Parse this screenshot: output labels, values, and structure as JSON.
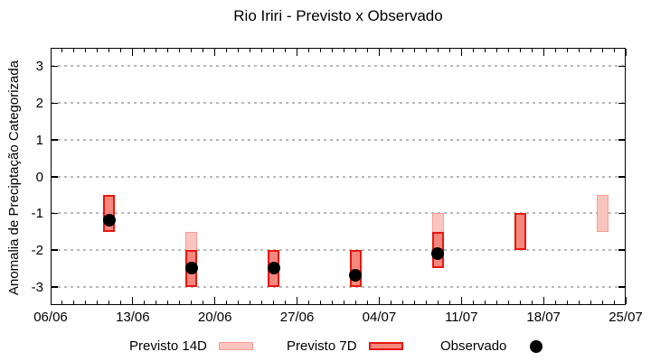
{
  "title": "Rio Iriri - Previsto x Observado",
  "y_axis": {
    "label": "Anomalia de Preciptação Categorizada",
    "ticks": [
      3,
      2,
      1,
      0,
      -1,
      -2,
      -3
    ],
    "range": [
      -3.5,
      3.5
    ]
  },
  "x_axis": {
    "tick_labels": [
      "06/06",
      "13/06",
      "20/06",
      "27/06",
      "04/07",
      "11/07",
      "18/07",
      "25/07"
    ],
    "start_date": "06/06",
    "end_date": "25/07",
    "major_tick_interval_days": 7,
    "minor_tick_interval_days": 1
  },
  "legend": {
    "previsto_14d": "Previsto 14D",
    "previsto_7d": "Previsto 7D",
    "observado": "Observado"
  },
  "colors": {
    "bar_14d_fill": "#fac5be",
    "bar_14d_border": "#f59d95",
    "bar_7d_fill": "#f4887f",
    "bar_7d_border": "#e9170e",
    "observed_dot": "#000000",
    "gridline": "#b9b9b9"
  },
  "chart_data": {
    "type": "bar",
    "subtype": "range_bars_with_points",
    "title": "Rio Iriri - Previsto x Observado",
    "xlabel": "",
    "ylabel": "Anomalia de Preciptação Categorizada",
    "ylim": [
      -3.5,
      3.5
    ],
    "grid": "horizontal-dotted",
    "legend_position": "bottom",
    "x_start": "06/06",
    "x_end": "25/07",
    "bar_width_days": 1,
    "series": [
      {
        "name": "Previsto 14D",
        "type": "range_bar",
        "fill": "#fac5be",
        "border": "#f59d95",
        "bars": [
          {
            "date": "18/06",
            "high": -1.5,
            "low": -3.0
          },
          {
            "date": "09/07",
            "high": -1.0,
            "low": -2.5
          },
          {
            "date": "23/07",
            "high": -0.5,
            "low": -1.5
          }
        ]
      },
      {
        "name": "Previsto 7D",
        "type": "range_bar",
        "fill": "#f4887f",
        "border": "#e9170e",
        "bars": [
          {
            "date": "11/06",
            "high": -0.5,
            "low": -1.5
          },
          {
            "date": "18/06",
            "high": -2.0,
            "low": -3.0
          },
          {
            "date": "25/06",
            "high": -2.0,
            "low": -3.0
          },
          {
            "date": "02/07",
            "high": -2.0,
            "low": -3.0
          },
          {
            "date": "09/07",
            "high": -1.5,
            "low": -2.5
          },
          {
            "date": "16/07",
            "high": -1.0,
            "low": -2.0
          }
        ]
      },
      {
        "name": "Observado",
        "type": "point",
        "color": "#000000",
        "points": [
          {
            "date": "11/06",
            "value": -1.2
          },
          {
            "date": "18/06",
            "value": -2.5
          },
          {
            "date": "25/06",
            "value": -2.5
          },
          {
            "date": "02/07",
            "value": -2.7
          },
          {
            "date": "09/07",
            "value": -2.1
          }
        ]
      }
    ]
  }
}
